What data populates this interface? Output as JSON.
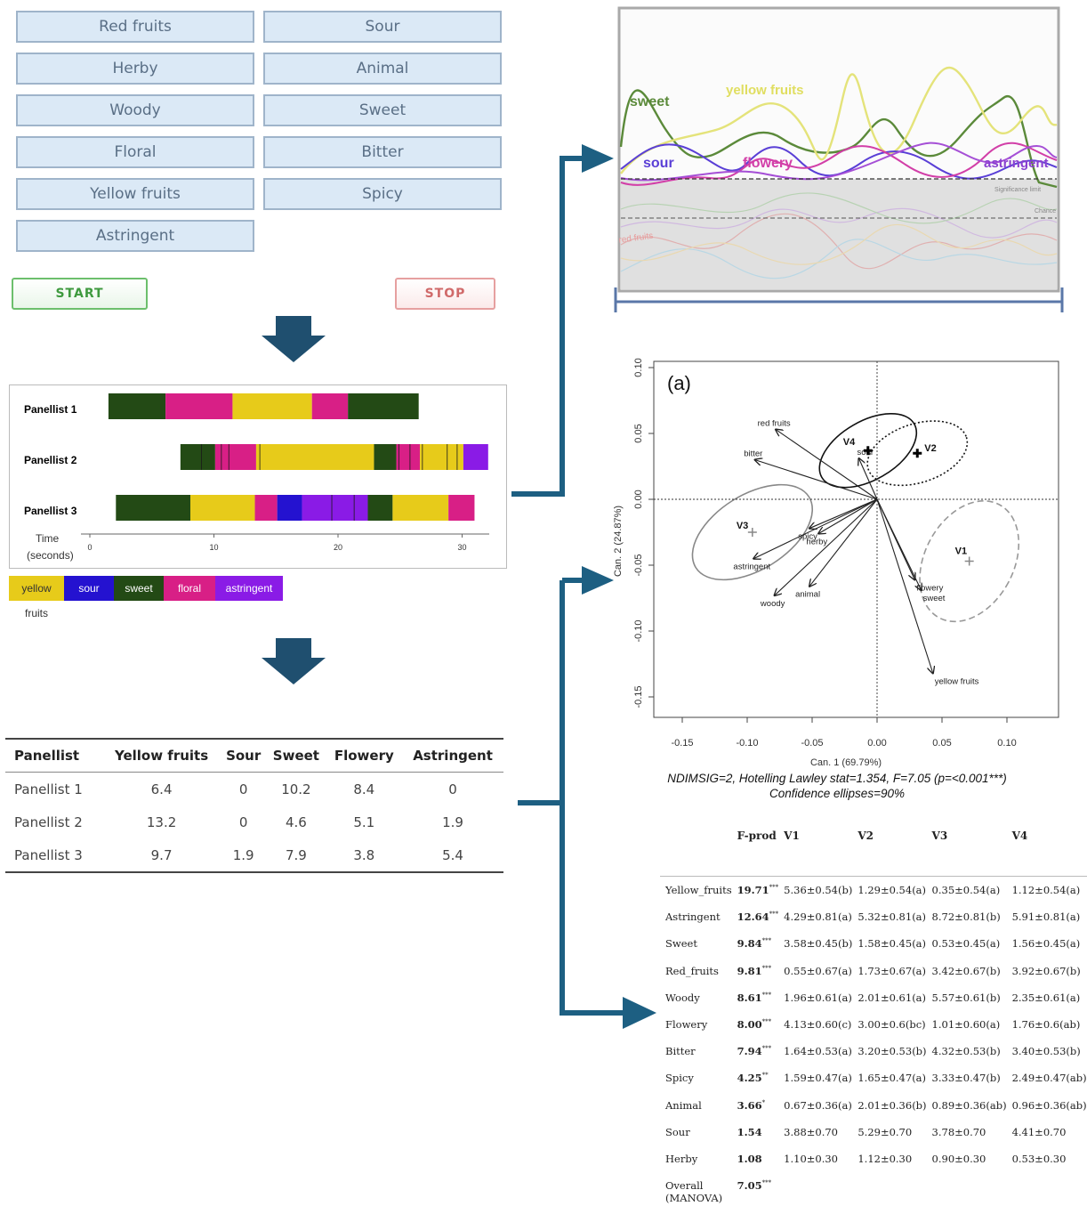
{
  "attribute_buttons": [
    "Red fruits",
    "Sour",
    "Herby",
    "Animal",
    "Woody",
    "Sweet",
    "Floral",
    "Bitter",
    "Yellow fruits",
    "Spicy",
    "Astringent"
  ],
  "controls": {
    "start_label": "START",
    "stop_label": "STOP"
  },
  "timeline": {
    "panellists": [
      "Panellist 1",
      "Panellist 2",
      "Panellist 3"
    ],
    "time_label": "Time",
    "time_unit_label": "(seconds)",
    "ticks": [
      "0",
      "10",
      "20",
      "30"
    ],
    "legend": [
      "yellow fruits",
      "sour",
      "sweet",
      "floral",
      "astringent"
    ],
    "colors": {
      "yellow fruits": "#e7cb1a",
      "sour": "#2412d0",
      "sweet": "#234a15",
      "floral": "#d81f86",
      "astringent": "#8a1be6"
    },
    "rows": [
      [
        [
          1.5,
          6.1,
          "sweet"
        ],
        [
          6.1,
          11.5,
          "floral"
        ],
        [
          11.5,
          17.9,
          "yellow fruits"
        ],
        [
          17.9,
          20.8,
          "floral"
        ],
        [
          20.8,
          26.5,
          "sweet"
        ]
      ],
      [
        [
          7.3,
          10.1,
          "sweet"
        ],
        [
          10.1,
          13.4,
          "floral"
        ],
        [
          13.4,
          22.9,
          "yellow fruits"
        ],
        [
          22.9,
          24.7,
          "sweet"
        ],
        [
          24.7,
          26.6,
          "floral"
        ],
        [
          26.6,
          30.1,
          "yellow fruits"
        ],
        [
          30.1,
          32.1,
          "astringent"
        ]
      ],
      [
        [
          2.1,
          8.1,
          "sweet"
        ],
        [
          8.1,
          13.3,
          "yellow fruits"
        ],
        [
          13.3,
          15.1,
          "floral"
        ],
        [
          15.1,
          17.1,
          "sour"
        ],
        [
          17.1,
          22.4,
          "astringent"
        ],
        [
          22.4,
          24.4,
          "sweet"
        ],
        [
          24.4,
          28.9,
          "yellow fruits"
        ],
        [
          28.9,
          31.0,
          "floral"
        ]
      ]
    ]
  },
  "panellist_table": {
    "headers": [
      "Panellist",
      "Yellow fruits",
      "Sour",
      "Sweet",
      "Flowery",
      "Astringent"
    ],
    "rows": [
      [
        "Panellist 1",
        "6.4",
        "0",
        "10.2",
        "8.4",
        "0"
      ],
      [
        "Panellist 2",
        "13.2",
        "0",
        "4.6",
        "5.1",
        "1.9"
      ],
      [
        "Panellist 3",
        "9.7",
        "1.9",
        "7.9",
        "3.8",
        "5.4"
      ]
    ]
  },
  "tds_curves": {
    "labels": [
      "sweet",
      "yellow fruits",
      "sour",
      "flowery",
      "astringent"
    ],
    "faint_labels": [
      "Significance limit",
      "Chance",
      "red fruits"
    ],
    "colors": {
      "sweet": "#5b8a3a",
      "yellow fruits": "#e4e37a",
      "sour": "#5a3fd6",
      "flowery": "#d23fa8",
      "astringent": "#a54fd6"
    }
  },
  "cva_plot": {
    "panel_label": "(a)",
    "xlabel": "Can. 1 (69.79%)",
    "ylabel": "Can. 2 (24.87%)",
    "x_ticks": [
      "-0.15",
      "-0.10",
      "-0.05",
      "0.00",
      "0.05",
      "0.10"
    ],
    "y_ticks": [
      "0.10",
      "0.05",
      "0.00",
      "-0.05",
      "-0.10",
      "-0.15"
    ],
    "caption_line1": "NDIMSIG=2, Hotelling Lawley stat=1.354, F=7.05 (p=<0.001***)",
    "caption_line2": "Confidence ellipses=90%",
    "products": [
      {
        "name": "V1",
        "x": 0.071,
        "y": -0.047
      },
      {
        "name": "V2",
        "x": 0.031,
        "y": 0.035
      },
      {
        "name": "V3",
        "x": -0.096,
        "y": -0.025
      },
      {
        "name": "V4",
        "x": -0.007,
        "y": 0.037
      }
    ],
    "vectors": [
      {
        "name": "red fruits",
        "x": -0.078,
        "y": 0.053
      },
      {
        "name": "bitter",
        "x": -0.094,
        "y": 0.03
      },
      {
        "name": "sour",
        "x": -0.014,
        "y": 0.031
      },
      {
        "name": "spicy",
        "x": -0.052,
        "y": -0.022
      },
      {
        "name": "herby",
        "x": -0.045,
        "y": -0.026
      },
      {
        "name": "astringent",
        "x": -0.095,
        "y": -0.045
      },
      {
        "name": "woody",
        "x": -0.079,
        "y": -0.073
      },
      {
        "name": "animal",
        "x": -0.052,
        "y": -0.066
      },
      {
        "name": "flowery",
        "x": 0.029,
        "y": -0.061
      },
      {
        "name": "sweet",
        "x": 0.034,
        "y": -0.069
      },
      {
        "name": "yellow fruits",
        "x": 0.043,
        "y": -0.132
      }
    ]
  },
  "stats_table": {
    "headers": [
      "",
      "F-prod",
      "V1",
      "V2",
      "V3",
      "V4"
    ],
    "rows": [
      [
        "Yellow_fruits",
        "19.71",
        "***",
        "5.36±0.54(b)",
        "1.29±0.54(a)",
        "0.35±0.54(a)",
        "1.12±0.54(a)"
      ],
      [
        "Astringent",
        "12.64",
        "***",
        "4.29±0.81(a)",
        "5.32±0.81(a)",
        "8.72±0.81(b)",
        "5.91±0.81(a)"
      ],
      [
        "Sweet",
        "9.84",
        "***",
        "3.58±0.45(b)",
        "1.58±0.45(a)",
        "0.53±0.45(a)",
        "1.56±0.45(a)"
      ],
      [
        "Red_fruits",
        "9.81",
        "***",
        "0.55±0.67(a)",
        "1.73±0.67(a)",
        "3.42±0.67(b)",
        "3.92±0.67(b)"
      ],
      [
        "Woody",
        "8.61",
        "***",
        "1.96±0.61(a)",
        "2.01±0.61(a)",
        "5.57±0.61(b)",
        "2.35±0.61(a)"
      ],
      [
        "Flowery",
        "8.00",
        "***",
        "4.13±0.60(c)",
        "3.00±0.6(bc)",
        "1.01±0.60(a)",
        "1.76±0.6(ab)"
      ],
      [
        "Bitter",
        "7.94",
        "***",
        "1.64±0.53(a)",
        "3.20±0.53(b)",
        "4.32±0.53(b)",
        "3.40±0.53(b)"
      ],
      [
        "Spicy",
        "4.25",
        "**",
        "1.59±0.47(a)",
        "1.65±0.47(a)",
        "3.33±0.47(b)",
        "2.49±0.47(ab)"
      ],
      [
        "Animal",
        "3.66",
        "*",
        "0.67±0.36(a)",
        "2.01±0.36(b)",
        "0.89±0.36(ab)",
        "0.96±0.36(ab)"
      ],
      [
        "Sour",
        "1.54",
        "",
        "3.88±0.70",
        "5.29±0.70",
        "3.78±0.70",
        "4.41±0.70"
      ],
      [
        "Herby",
        "1.08",
        "",
        "1.10±0.30",
        "1.12±0.30",
        "0.90±0.30",
        "0.53±0.30"
      ],
      [
        "Overall",
        "7.05",
        "***",
        "",
        "",
        "",
        ""
      ]
    ],
    "overall_note": "(MANOVA)"
  }
}
